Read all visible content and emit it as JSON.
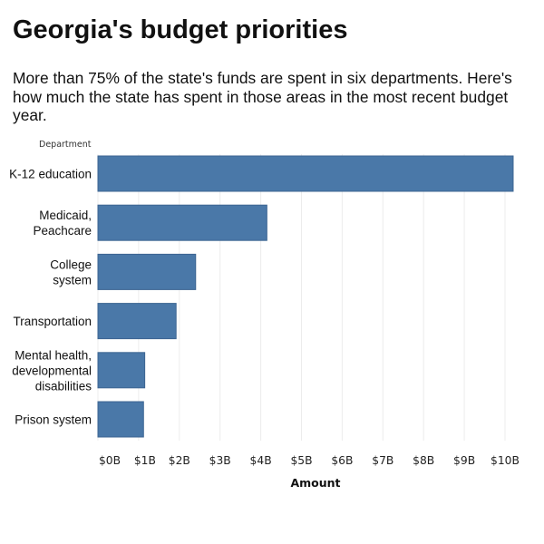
{
  "title": "Georgia's budget priorities",
  "subtitle": "More than 75% of the state's funds are spent in six departments. Here's how much the state has spent in those areas in the most recent budget year.",
  "colors": {
    "bar": "#4a78a8",
    "bar_edge": "#3c6592",
    "grid": "#ececec"
  },
  "chart_data": {
    "type": "bar",
    "orientation": "horizontal",
    "ylabel": "Department",
    "xlabel": "Amount",
    "categories": [
      [
        "K-12 education"
      ],
      [
        "Medicaid,",
        "Peachcare"
      ],
      [
        "College",
        "system"
      ],
      [
        "Transportation"
      ],
      [
        "Mental health,",
        "developmental",
        "disabilities"
      ],
      [
        "Prison system"
      ]
    ],
    "values": [
      10.2,
      4.15,
      2.4,
      1.92,
      1.15,
      1.12
    ],
    "unit": "billion dollars",
    "xlim": [
      0,
      10.5
    ],
    "xticks": [
      0,
      1,
      2,
      3,
      4,
      5,
      6,
      7,
      8,
      9,
      10
    ],
    "xtick_labels": [
      "$0B",
      "$1B",
      "$2B",
      "$3B",
      "$4B",
      "$5B",
      "$6B",
      "$7B",
      "$8B",
      "$9B",
      "$10B"
    ],
    "grid": true
  }
}
